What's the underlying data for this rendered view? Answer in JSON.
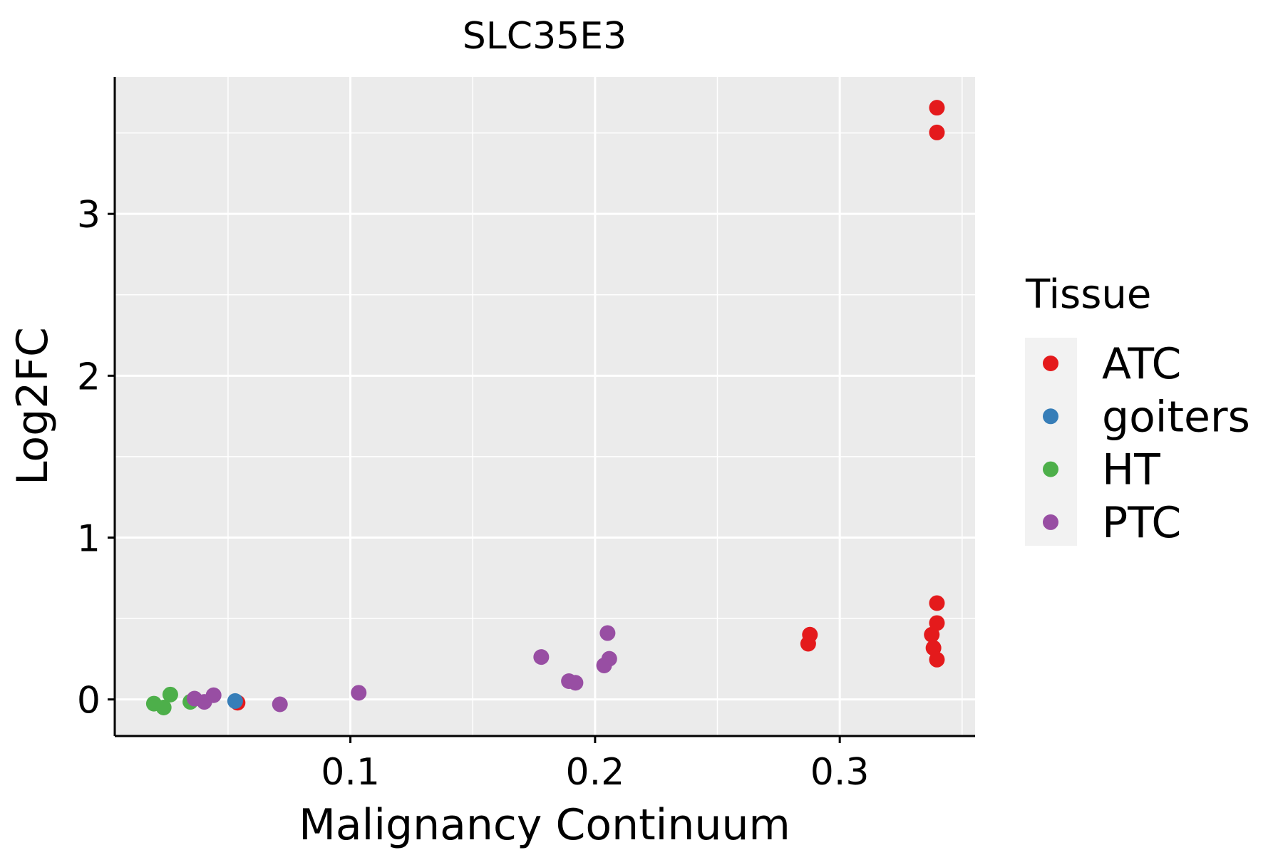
{
  "chart_data": {
    "type": "scatter",
    "title": "SLC35E3",
    "xlabel": "Malignancy Continuum",
    "ylabel": "Log2FC",
    "xlim": [
      0.0037,
      0.3553
    ],
    "ylim": [
      -0.226,
      3.846
    ],
    "x_ticks": [
      0.1,
      0.2,
      0.3
    ],
    "x_tick_labels": [
      "0.1",
      "0.2",
      "0.3"
    ],
    "y_ticks": [
      0,
      1,
      2,
      3
    ],
    "y_tick_labels": [
      "0",
      "1",
      "2",
      "3"
    ],
    "grid": true,
    "legend": {
      "title": "Tissue",
      "position": "right"
    },
    "series": [
      {
        "name": "ATC",
        "color": "#E41A1C",
        "points": [
          [
            0.0539,
            -0.02
          ],
          [
            0.2871,
            0.344
          ],
          [
            0.2878,
            0.4
          ],
          [
            0.3397,
            3.656
          ],
          [
            0.3397,
            3.503
          ],
          [
            0.3397,
            0.595
          ],
          [
            0.3397,
            0.472
          ],
          [
            0.3376,
            0.4
          ],
          [
            0.3383,
            0.318
          ],
          [
            0.3397,
            0.246
          ]
        ]
      },
      {
        "name": "goiters",
        "color": "#377EB8",
        "points": [
          [
            0.0529,
            -0.01
          ]
        ]
      },
      {
        "name": "HT",
        "color": "#4DAF4A",
        "points": [
          [
            0.0197,
            -0.026
          ],
          [
            0.0237,
            -0.05
          ],
          [
            0.0264,
            0.03
          ],
          [
            0.0346,
            -0.015
          ]
        ]
      },
      {
        "name": "PTC",
        "color": "#984EA3",
        "points": [
          [
            0.0363,
            0.005
          ],
          [
            0.0403,
            -0.015
          ],
          [
            0.0441,
            0.026
          ],
          [
            0.0712,
            -0.03
          ],
          [
            0.1034,
            0.041
          ],
          [
            0.178,
            0.262
          ],
          [
            0.1893,
            0.113
          ],
          [
            0.192,
            0.103
          ],
          [
            0.2037,
            0.21
          ],
          [
            0.2051,
            0.41
          ],
          [
            0.2058,
            0.251
          ]
        ]
      }
    ]
  }
}
